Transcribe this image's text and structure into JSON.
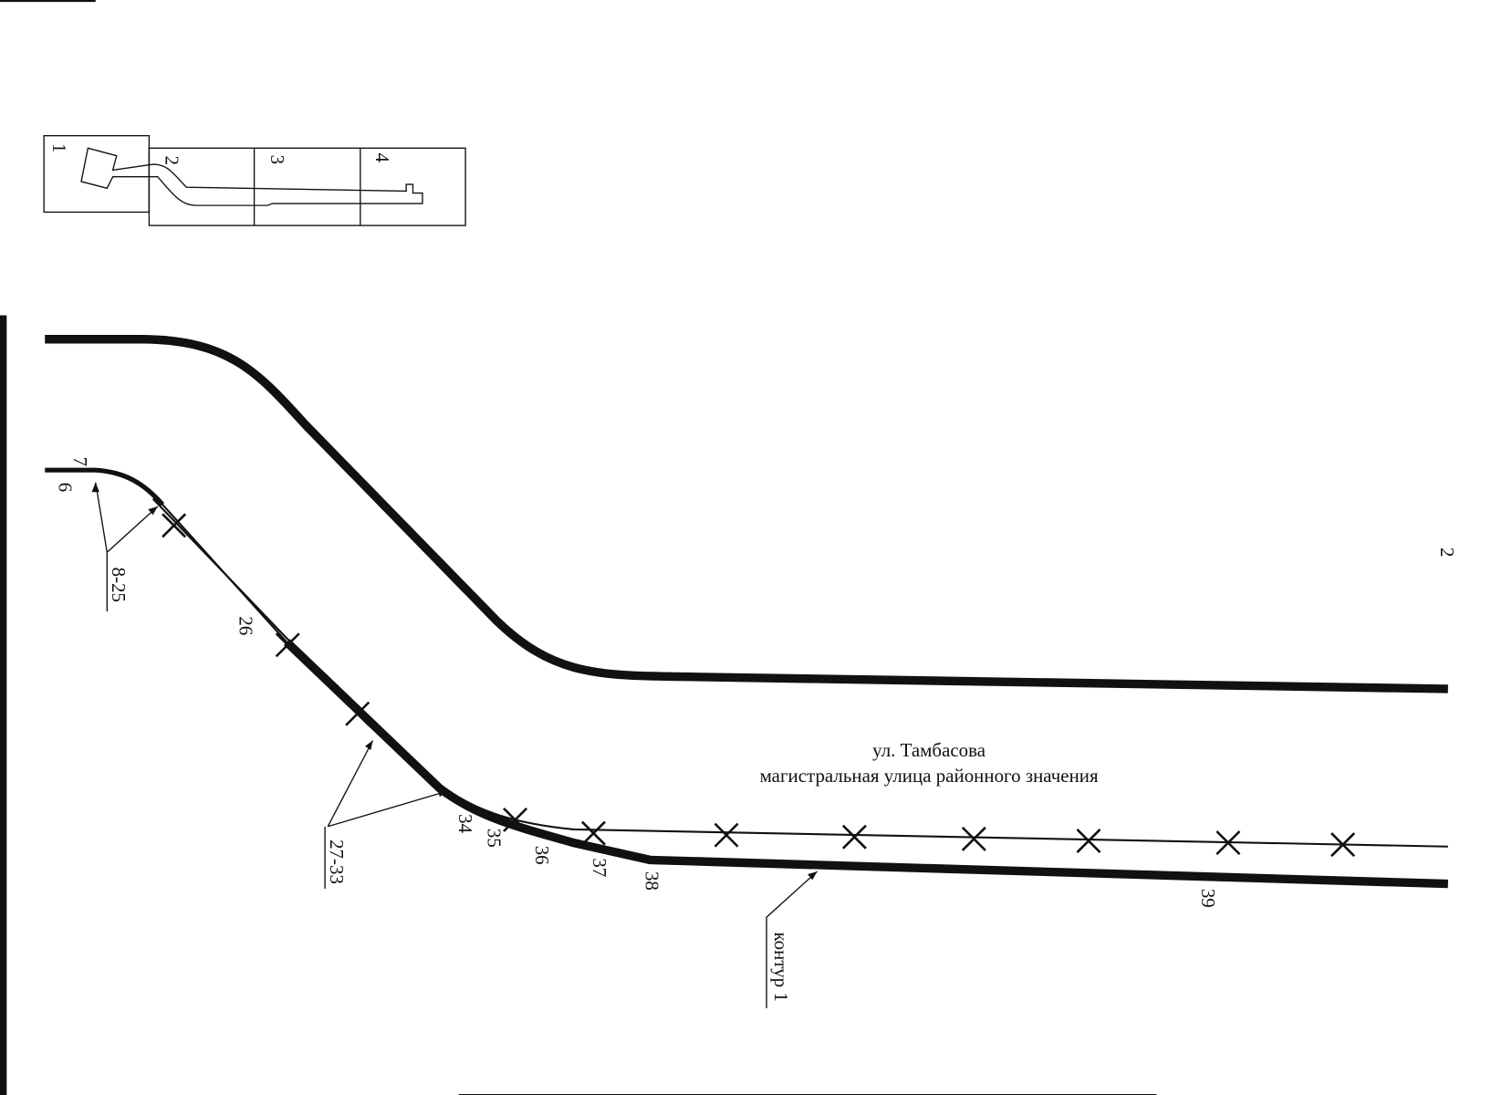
{
  "inset": {
    "sheets": [
      "1",
      "2",
      "3",
      "4"
    ]
  },
  "points": [
    "7",
    "6",
    "8-25",
    "26",
    "27-33",
    "34",
    "35",
    "36",
    "37",
    "38",
    "39"
  ],
  "contour_label": "контур 1",
  "street": {
    "name": "ул. Тамбасова",
    "description": "магистральная улица районного значения"
  },
  "page_number": "2"
}
